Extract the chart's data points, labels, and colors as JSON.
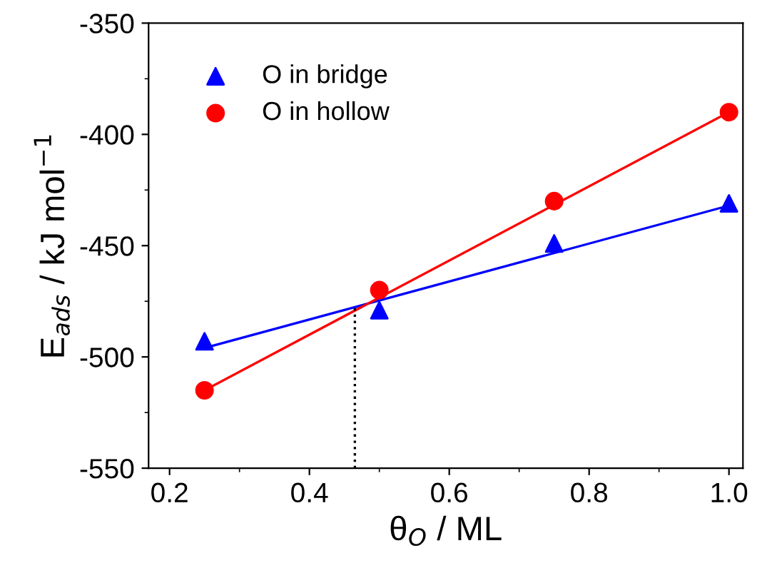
{
  "chart_data": {
    "type": "scatter",
    "xlabel": "θ$_{O}$ / ML",
    "ylabel": "E$_{ads}$ / kJ mol$^{−1}$",
    "xlim": [
      0.17,
      1.02
    ],
    "ylim": [
      -550,
      -350
    ],
    "xticks": [
      0.2,
      0.4,
      0.6,
      0.8,
      {
        "value": 1,
        "label": "1.0"
      }
    ],
    "yticks": [
      -550,
      -500,
      -450,
      -400,
      -350
    ],
    "legend": "top left",
    "grid": false,
    "series": [
      {
        "name": "O in bridge",
        "marker": "triangle",
        "color": "#0000ff",
        "x": [
          0.25,
          0.5,
          0.75,
          1.0
        ],
        "values": [
          -493,
          -479,
          -449,
          -431
        ]
      },
      {
        "name": "O in hollow",
        "marker": "circle",
        "color": "#ff0000",
        "x": [
          0.25,
          0.5,
          0.75,
          1.0
        ],
        "values": [
          -515,
          -470,
          -430,
          -390
        ]
      },
      {
        "type": "line",
        "color": "#0000ff",
        "line_style": "solid",
        "x": [
          0.25,
          1.0
        ],
        "values": [
          -496,
          -432
        ]
      },
      {
        "type": "line",
        "color": "#ff0000",
        "line_style": "solid",
        "x": [
          0.25,
          1.0
        ],
        "values": [
          -515,
          -390
        ]
      },
      {
        "type": "line",
        "color": "#000000",
        "line_style": "dotted",
        "x": [
          0.465,
          0.465
        ],
        "values": [
          -550,
          -477
        ]
      }
    ]
  }
}
